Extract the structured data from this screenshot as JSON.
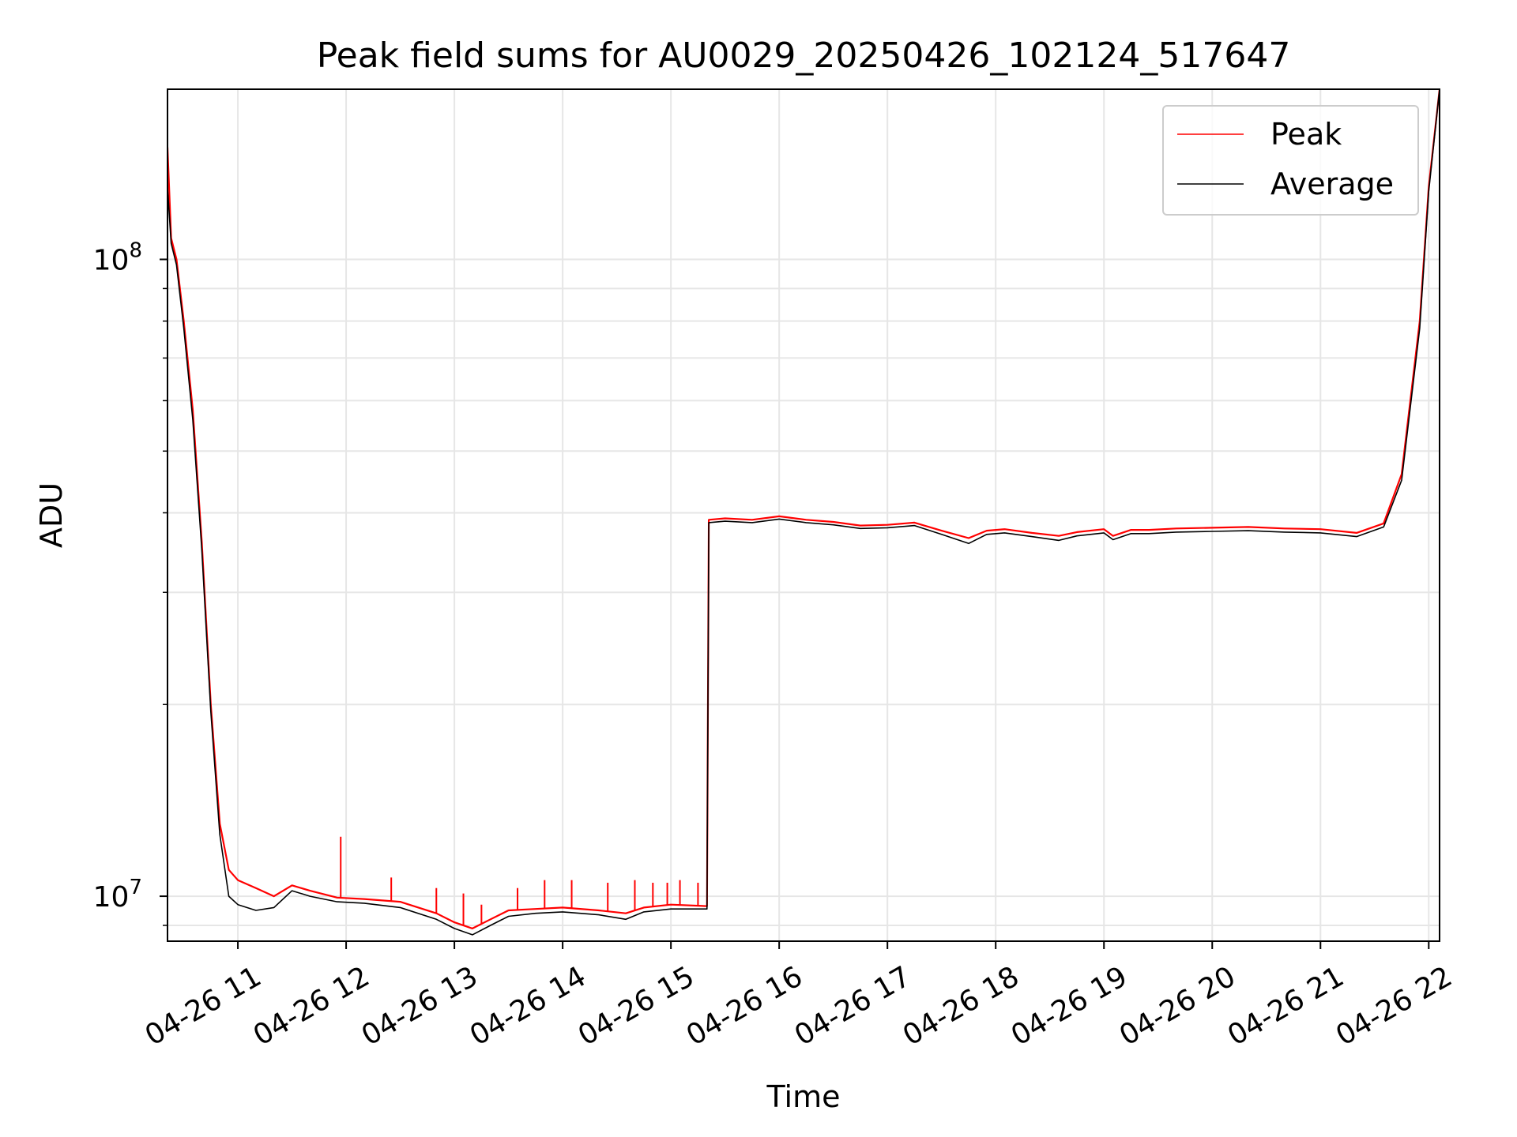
{
  "chart_data": {
    "type": "line",
    "title": "Peak field sums for AU0029_20250426_102124_517647",
    "xlabel": "Time",
    "ylabel": "ADU",
    "x_scale": "time",
    "y_scale": "log",
    "xlim": [
      "2025-04-26 10:21",
      "2025-04-26 22:06"
    ],
    "ylim": [
      8500000,
      185000000
    ],
    "grid": true,
    "legend_position": "top-right",
    "x_ticks": [
      "04-26 11",
      "04-26 12",
      "04-26 13",
      "04-26 14",
      "04-26 15",
      "04-26 16",
      "04-26 17",
      "04-26 18",
      "04-26 19",
      "04-26 20",
      "04-26 21",
      "04-26 22"
    ],
    "y_tick_labels": [
      {
        "value": 10000000,
        "base": "10",
        "exp": "7"
      },
      {
        "value": 100000000,
        "base": "10",
        "exp": "8"
      }
    ],
    "series": [
      {
        "name": "Peak",
        "color": "#ff0000",
        "x": [
          "2025-04-26 10:21",
          "2025-04-26 10:23",
          "2025-04-26 10:26",
          "2025-04-26 10:30",
          "2025-04-26 10:35",
          "2025-04-26 10:40",
          "2025-04-26 10:45",
          "2025-04-26 10:50",
          "2025-04-26 10:55",
          "2025-04-26 11:00",
          "2025-04-26 11:10",
          "2025-04-26 11:20",
          "2025-04-26 11:30",
          "2025-04-26 11:40",
          "2025-04-26 11:55",
          "2025-04-26 12:10",
          "2025-04-26 12:30",
          "2025-04-26 12:50",
          "2025-04-26 13:00",
          "2025-04-26 13:10",
          "2025-04-26 13:20",
          "2025-04-26 13:30",
          "2025-04-26 13:45",
          "2025-04-26 14:00",
          "2025-04-26 14:20",
          "2025-04-26 14:35",
          "2025-04-26 14:45",
          "2025-04-26 15:00",
          "2025-04-26 15:20",
          "2025-04-26 15:21",
          "2025-04-26 15:30",
          "2025-04-26 15:45",
          "2025-04-26 16:00",
          "2025-04-26 16:15",
          "2025-04-26 16:30",
          "2025-04-26 16:45",
          "2025-04-26 17:00",
          "2025-04-26 17:15",
          "2025-04-26 17:30",
          "2025-04-26 17:45",
          "2025-04-26 17:55",
          "2025-04-26 18:05",
          "2025-04-26 18:20",
          "2025-04-26 18:35",
          "2025-04-26 18:45",
          "2025-04-26 19:00",
          "2025-04-26 19:05",
          "2025-04-26 19:15",
          "2025-04-26 19:25",
          "2025-04-26 19:40",
          "2025-04-26 20:00",
          "2025-04-26 20:20",
          "2025-04-26 20:40",
          "2025-04-26 21:00",
          "2025-04-26 21:20",
          "2025-04-26 21:35",
          "2025-04-26 21:45",
          "2025-04-26 21:55",
          "2025-04-26 22:00",
          "2025-04-26 22:06"
        ],
        "values": [
          150000000,
          108000000,
          100000000,
          80000000,
          58000000,
          36000000,
          20000000,
          13000000,
          11000000,
          10600000,
          10300000,
          10000000,
          10400000,
          10200000,
          9950000,
          9900000,
          9800000,
          9400000,
          9100000,
          8900000,
          9200000,
          9500000,
          9550000,
          9600000,
          9500000,
          9400000,
          9600000,
          9700000,
          9650000,
          39000000,
          39200000,
          39000000,
          39500000,
          39000000,
          38700000,
          38200000,
          38300000,
          38600000,
          37500000,
          36500000,
          37500000,
          37700000,
          37200000,
          36800000,
          37300000,
          37700000,
          36800000,
          37600000,
          37600000,
          37800000,
          37900000,
          38000000,
          37800000,
          37700000,
          37200000,
          38500000,
          46000000,
          80000000,
          130000000,
          185000000
        ],
        "spikes": [
          {
            "x": "2025-04-26 11:57",
            "value": 12400000
          },
          {
            "x": "2025-04-26 12:25",
            "value": 10700000
          },
          {
            "x": "2025-04-26 12:50",
            "value": 10300000
          },
          {
            "x": "2025-04-26 13:05",
            "value": 10100000
          },
          {
            "x": "2025-04-26 13:15",
            "value": 9700000
          },
          {
            "x": "2025-04-26 13:35",
            "value": 10300000
          },
          {
            "x": "2025-04-26 13:50",
            "value": 10600000
          },
          {
            "x": "2025-04-26 14:05",
            "value": 10600000
          },
          {
            "x": "2025-04-26 14:25",
            "value": 10500000
          },
          {
            "x": "2025-04-26 14:40",
            "value": 10600000
          },
          {
            "x": "2025-04-26 14:50",
            "value": 10500000
          },
          {
            "x": "2025-04-26 14:58",
            "value": 10500000
          },
          {
            "x": "2025-04-26 15:05",
            "value": 10600000
          },
          {
            "x": "2025-04-26 15:15",
            "value": 10500000
          }
        ]
      },
      {
        "name": "Average",
        "color": "#000000",
        "x": [
          "2025-04-26 10:21",
          "2025-04-26 10:23",
          "2025-04-26 10:26",
          "2025-04-26 10:30",
          "2025-04-26 10:35",
          "2025-04-26 10:40",
          "2025-04-26 10:45",
          "2025-04-26 10:50",
          "2025-04-26 10:55",
          "2025-04-26 11:00",
          "2025-04-26 11:10",
          "2025-04-26 11:20",
          "2025-04-26 11:30",
          "2025-04-26 11:40",
          "2025-04-26 11:55",
          "2025-04-26 12:10",
          "2025-04-26 12:30",
          "2025-04-26 12:50",
          "2025-04-26 13:00",
          "2025-04-26 13:10",
          "2025-04-26 13:20",
          "2025-04-26 13:30",
          "2025-04-26 13:45",
          "2025-04-26 14:00",
          "2025-04-26 14:20",
          "2025-04-26 14:35",
          "2025-04-26 14:45",
          "2025-04-26 15:00",
          "2025-04-26 15:20",
          "2025-04-26 15:21",
          "2025-04-26 15:30",
          "2025-04-26 15:45",
          "2025-04-26 16:00",
          "2025-04-26 16:15",
          "2025-04-26 16:30",
          "2025-04-26 16:45",
          "2025-04-26 17:00",
          "2025-04-26 17:15",
          "2025-04-26 17:30",
          "2025-04-26 17:45",
          "2025-04-26 17:55",
          "2025-04-26 18:05",
          "2025-04-26 18:20",
          "2025-04-26 18:35",
          "2025-04-26 18:45",
          "2025-04-26 19:00",
          "2025-04-26 19:05",
          "2025-04-26 19:15",
          "2025-04-26 19:25",
          "2025-04-26 19:40",
          "2025-04-26 20:00",
          "2025-04-26 20:20",
          "2025-04-26 20:40",
          "2025-04-26 21:00",
          "2025-04-26 21:20",
          "2025-04-26 21:35",
          "2025-04-26 21:45",
          "2025-04-26 21:55",
          "2025-04-26 22:00",
          "2025-04-26 22:06"
        ],
        "values": [
          130000000,
          106000000,
          98000000,
          78000000,
          56000000,
          35000000,
          19500000,
          12500000,
          10000000,
          9700000,
          9500000,
          9600000,
          10200000,
          10000000,
          9800000,
          9750000,
          9600000,
          9200000,
          8900000,
          8700000,
          9000000,
          9300000,
          9400000,
          9450000,
          9350000,
          9200000,
          9450000,
          9550000,
          9550000,
          38600000,
          38800000,
          38600000,
          39100000,
          38600000,
          38300000,
          37800000,
          37900000,
          38200000,
          37000000,
          35800000,
          37000000,
          37200000,
          36700000,
          36200000,
          36800000,
          37200000,
          36300000,
          37100000,
          37100000,
          37300000,
          37400000,
          37500000,
          37300000,
          37200000,
          36700000,
          38000000,
          45000000,
          78000000,
          128000000,
          185000000
        ]
      }
    ]
  }
}
